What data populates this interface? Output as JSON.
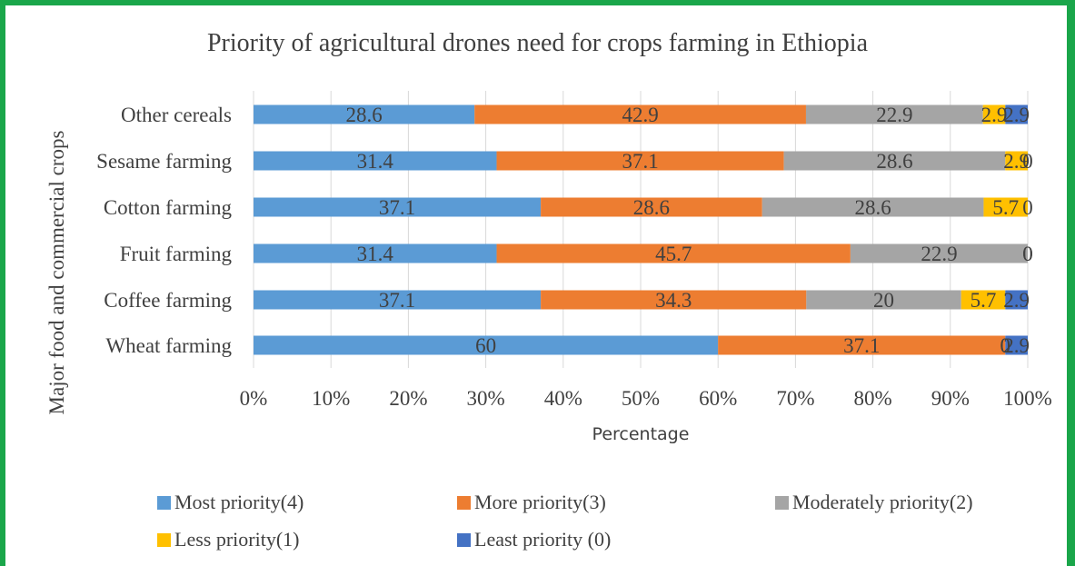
{
  "chart_data": {
    "type": "bar",
    "orientation": "horizontal",
    "stacked": "percent",
    "title": "Priority of agricultural drones need for crops farming in Ethiopia",
    "xlabel": "Percentage",
    "ylabel": "Major food and commercial crops",
    "categories": [
      "Wheat farming",
      "Coffee farming",
      "Fruit farming",
      "Cotton farming",
      "Sesame farming",
      "Other cereals"
    ],
    "xlim": [
      0,
      100
    ],
    "xticks": [
      "0%",
      "10%",
      "20%",
      "30%",
      "40%",
      "50%",
      "60%",
      "70%",
      "80%",
      "90%",
      "100%"
    ],
    "grid": true,
    "legend_position": "bottom",
    "series": [
      {
        "name": "Most priority(4)",
        "color": "#5b9bd5",
        "values": [
          60,
          37.1,
          31.4,
          37.1,
          31.4,
          28.6
        ],
        "labels": [
          "60",
          "37.1",
          "31.4",
          "37.1",
          "31.4",
          "28.6"
        ]
      },
      {
        "name": "More priority(3)",
        "color": "#ed7d31",
        "values": [
          37.1,
          34.3,
          45.7,
          28.6,
          37.1,
          42.9
        ],
        "labels": [
          "37.1",
          "34.3",
          "45.7",
          "28.6",
          "37.1",
          "42.9"
        ]
      },
      {
        "name": "Moderately priority(2)",
        "color": "#a5a5a5",
        "values": [
          0,
          20,
          22.9,
          28.6,
          28.6,
          22.9
        ],
        "labels": [
          "0",
          "20",
          "22.9",
          "28.6",
          "28.6",
          "22.9"
        ]
      },
      {
        "name": "Less priority(1)",
        "color": "#ffc000",
        "values": [
          0,
          5.7,
          0,
          5.7,
          2.9,
          2.9
        ],
        "labels": [
          "0",
          "5.7",
          "0",
          "5.7",
          "2.9",
          "2.9"
        ]
      },
      {
        "name": "Least priority (0)",
        "color": "#4472c4",
        "values": [
          2.9,
          2.9,
          0,
          0,
          0,
          2.9
        ],
        "labels": [
          "2.9",
          "2.9",
          "0",
          "0",
          "0",
          "2.9"
        ]
      }
    ]
  }
}
